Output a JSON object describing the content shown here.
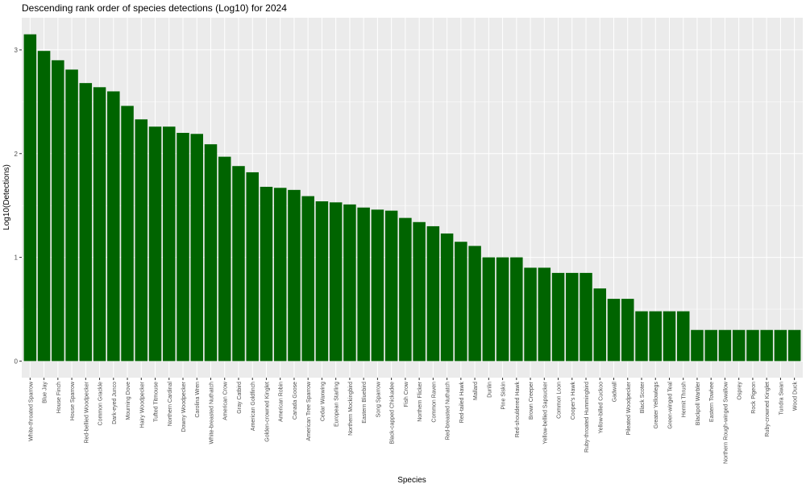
{
  "chart_data": {
    "type": "bar",
    "title": "Descending rank order of species detections (Log10) for 2024",
    "xlabel": "Species",
    "ylabel": "Log10(Detections)",
    "ylim": [
      -0.16,
      3.31
    ],
    "yticks": [
      0,
      1,
      2,
      3
    ],
    "ytick_labels": [
      "0",
      "1",
      "2",
      "3"
    ],
    "grid": true,
    "bar_color": "#006400",
    "panel_color": "#ebebeb",
    "categories": [
      "White-throated Sparrow",
      "Blue Jay",
      "House Finch",
      "House Sparrow",
      "Red-bellied Woodpecker",
      "Common Grackle",
      "Dark-eyed Junco",
      "Mourning Dove",
      "Hairy Woodpecker",
      "Tufted Titmouse",
      "Northern Cardinal",
      "Downy Woodpecker",
      "Carolina Wren",
      "White-breasted Nuthatch",
      "American Crow",
      "Gray Catbird",
      "American Goldfinch",
      "Golden-crowned Kinglet",
      "American Robin",
      "Canada Goose",
      "American Tree Sparrow",
      "Cedar Waxwing",
      "European Starling",
      "Northern Mockingbird",
      "Eastern Bluebird",
      "Song Sparrow",
      "Black-capped Chickadee",
      "Fish Crow",
      "Northern Flicker",
      "Common Raven",
      "Red-breasted Nuthatch",
      "Red-tailed Hawk",
      "Mallard",
      "Dunlin",
      "Pine Siskin",
      "Red-shouldered Hawk",
      "Brown Creeper",
      "Yellow-bellied Sapsucker",
      "Common Loon",
      "Cooper's Hawk",
      "Ruby-throated Hummingbird",
      "Yellow-billed Cuckoo",
      "Gadwall",
      "Pileated Woodpecker",
      "Black Scoter",
      "Greater Yellowlegs",
      "Green-winged Teal",
      "Hermit Thrush",
      "Blackpoll Warbler",
      "Eastern Towhee",
      "Northern Rough-winged Swallow",
      "Osprey",
      "Rock Pigeon",
      "Ruby-crowned Kinglet",
      "Tundra Swan",
      "Wood Duck"
    ],
    "values": [
      3.15,
      2.99,
      2.9,
      2.81,
      2.68,
      2.64,
      2.6,
      2.46,
      2.33,
      2.26,
      2.26,
      2.2,
      2.19,
      2.09,
      1.97,
      1.88,
      1.82,
      1.68,
      1.67,
      1.65,
      1.59,
      1.54,
      1.53,
      1.51,
      1.48,
      1.46,
      1.45,
      1.38,
      1.34,
      1.3,
      1.23,
      1.15,
      1.11,
      1.0,
      1.0,
      1.0,
      0.9,
      0.9,
      0.85,
      0.85,
      0.85,
      0.7,
      0.6,
      0.6,
      0.48,
      0.48,
      0.48,
      0.48,
      0.3,
      0.3,
      0.3,
      0.3,
      0.3,
      0.3,
      0.3,
      0.3
    ]
  }
}
